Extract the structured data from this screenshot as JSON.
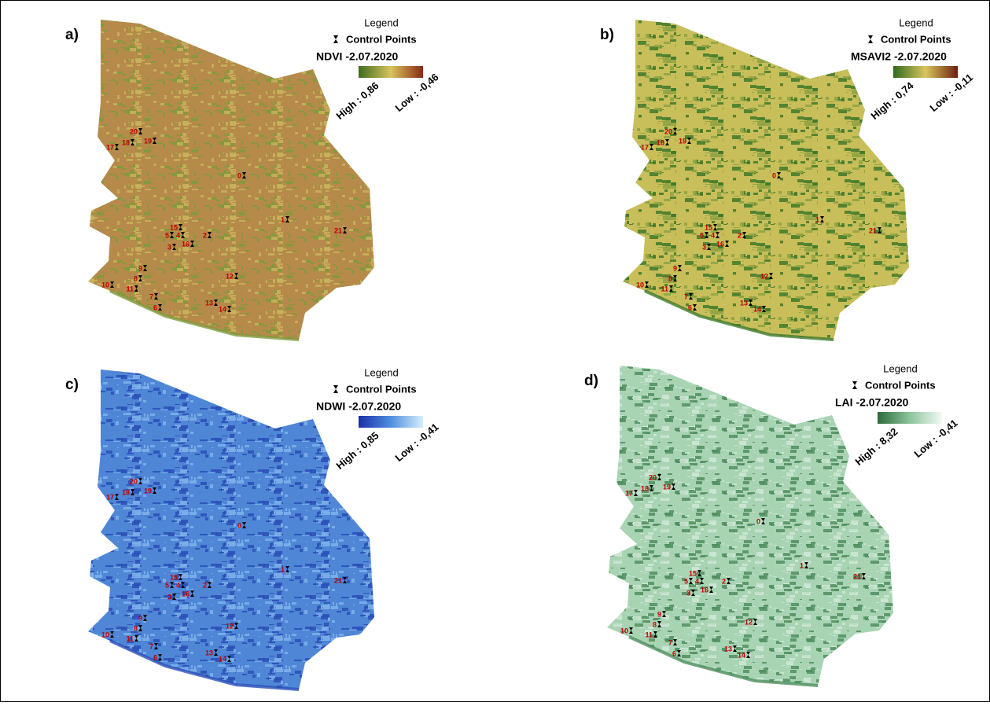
{
  "panels": [
    {
      "letter": "a)",
      "legend_title": "Legend",
      "symbol_label": "Control Points",
      "index_title": "NDVI -2.07.2020",
      "high": "High : 0,86",
      "low": "Low : -0,46",
      "colors": [
        "#3d6b1e",
        "#d9c45e",
        "#8a2a12"
      ],
      "map_colors": [
        "#b58a4a",
        "#c9b25c",
        "#7f9a3c"
      ]
    },
    {
      "letter": "b)",
      "legend_title": "Legend",
      "symbol_label": "Control Points",
      "index_title": "MSAVI2 -2.07.2020",
      "high": "High : 0,74",
      "low": "Low : -0,11",
      "colors": [
        "#2f6b1e",
        "#d9c45e",
        "#6b1e0e"
      ],
      "map_colors": [
        "#c8be5a",
        "#8fa443",
        "#3f7a2a"
      ]
    },
    {
      "letter": "c)",
      "legend_title": "Legend",
      "symbol_label": "Control Points",
      "index_title": "NDWI -2.07.2020",
      "high": "High : 0,85",
      "low": "Low : -0,41",
      "colors": [
        "#1b2fa8",
        "#4f8fe0",
        "#d6eefc"
      ],
      "map_colors": [
        "#4f86d6",
        "#7fb2ea",
        "#2a4fb8"
      ]
    },
    {
      "letter": "d)",
      "legend_title": "Legend",
      "symbol_label": "Control Points",
      "index_title": "LAI -2.07.2020",
      "high": "High : 8,32",
      "low": "Low : -0,41",
      "colors": [
        "#2e6b3a",
        "#8cc49c",
        "#f2faf4"
      ],
      "map_colors": [
        "#a9d4b4",
        "#cfe8d6",
        "#4f8e5e"
      ]
    }
  ],
  "control_points": [
    "17",
    "18",
    "20",
    "19",
    "0",
    "1",
    "21",
    "15",
    "5",
    "3",
    "4",
    "16",
    "2",
    "9",
    "8",
    "10",
    "11",
    "7",
    "6",
    "12",
    "13",
    "14"
  ]
}
